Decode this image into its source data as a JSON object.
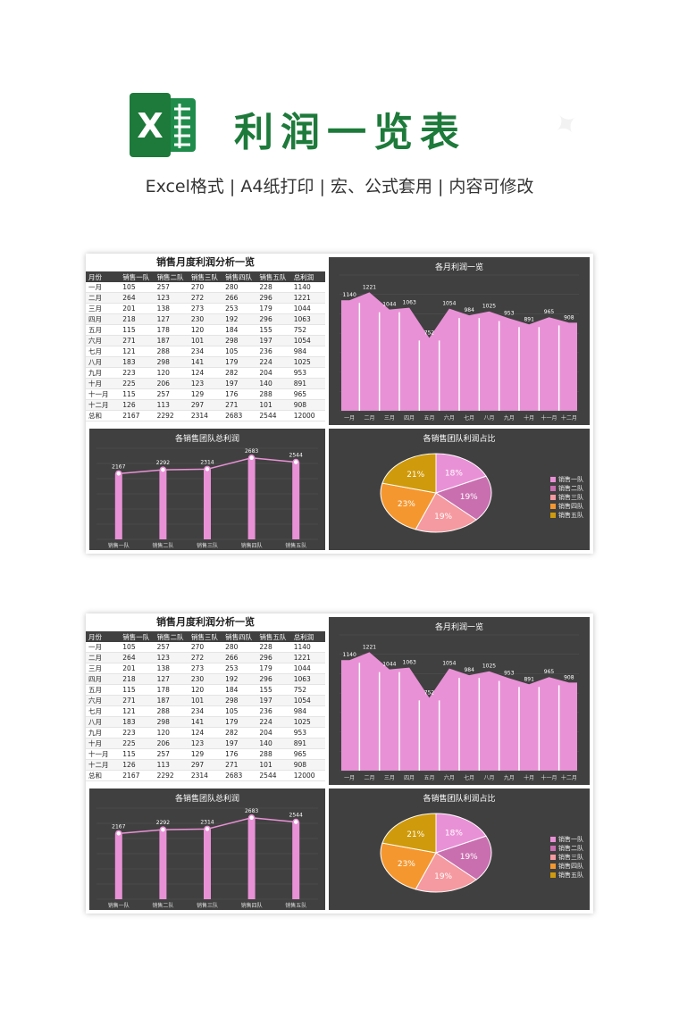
{
  "header": {
    "title": "利润一览表",
    "subtitle": "Excel格式 | A4纸打印 | 宏、公式套用 | 内容可修改",
    "logo_letter": "X"
  },
  "sheet": {
    "title": "销售月度利润分析一览",
    "columns": [
      "月份",
      "销售一队",
      "销售二队",
      "销售三队",
      "销售四队",
      "销售五队",
      "总利润"
    ],
    "rows": [
      [
        "一月",
        "105",
        "257",
        "270",
        "280",
        "228",
        "1140"
      ],
      [
        "二月",
        "264",
        "123",
        "272",
        "266",
        "296",
        "1221"
      ],
      [
        "三月",
        "201",
        "138",
        "273",
        "253",
        "179",
        "1044"
      ],
      [
        "四月",
        "218",
        "127",
        "230",
        "192",
        "296",
        "1063"
      ],
      [
        "五月",
        "115",
        "178",
        "120",
        "184",
        "155",
        "752"
      ],
      [
        "六月",
        "271",
        "187",
        "101",
        "298",
        "197",
        "1054"
      ],
      [
        "七月",
        "121",
        "288",
        "234",
        "105",
        "236",
        "984"
      ],
      [
        "八月",
        "183",
        "298",
        "141",
        "179",
        "224",
        "1025"
      ],
      [
        "九月",
        "223",
        "120",
        "124",
        "282",
        "204",
        "953"
      ],
      [
        "十月",
        "225",
        "206",
        "123",
        "197",
        "140",
        "891"
      ],
      [
        "十一月",
        "115",
        "257",
        "129",
        "176",
        "288",
        "965"
      ],
      [
        "十二月",
        "126",
        "113",
        "297",
        "271",
        "101",
        "908"
      ],
      [
        "总和",
        "2167",
        "2292",
        "2314",
        "2683",
        "2544",
        "12000"
      ]
    ]
  },
  "chart_data": [
    {
      "type": "area",
      "title": "各月利润一览",
      "categories": [
        "一月",
        "二月",
        "三月",
        "四月",
        "五月",
        "六月",
        "七月",
        "八月",
        "九月",
        "十月",
        "十一月",
        "十二月"
      ],
      "values": [
        1140,
        1221,
        1044,
        1063,
        752,
        1054,
        984,
        1025,
        953,
        891,
        965,
        908
      ],
      "ylim": [
        0,
        1400
      ],
      "color": "#e991d6"
    },
    {
      "type": "bar",
      "title": "各销售团队总利润",
      "categories": [
        "销售一队",
        "销售二队",
        "销售三队",
        "销售四队",
        "销售五队"
      ],
      "values": [
        2167,
        2292,
        2314,
        2683,
        2544
      ],
      "ylim": [
        0,
        3000
      ],
      "color": "#e991d6"
    },
    {
      "type": "pie",
      "title": "各销售团队利润占比",
      "categories": [
        "销售一队",
        "销售二队",
        "销售三队",
        "销售四队",
        "销售五队"
      ],
      "values": [
        18,
        19,
        19,
        23,
        21
      ],
      "labels": [
        "18%",
        "19%",
        "19%",
        "23%",
        "21%"
      ],
      "colors": [
        "#e991d6",
        "#c96fb0",
        "#f59aa0",
        "#f5972f",
        "#cf9a0b"
      ],
      "legend": "right"
    }
  ]
}
